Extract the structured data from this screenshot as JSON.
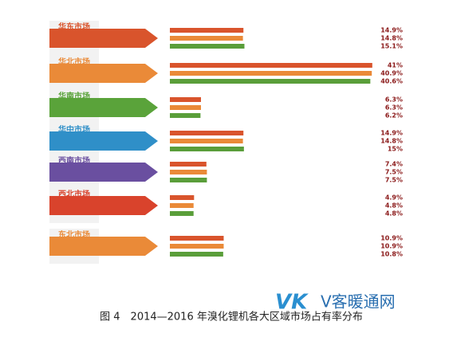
{
  "chart_data": {
    "type": "grouped-barh",
    "title": "图 4　2014—2016 年溴化锂机各大区域市场占有率分布",
    "logo": "VK",
    "logo_text": "V客暖通网",
    "categories": [
      "华东市场",
      "华北市场",
      "华南市场",
      "华中市场",
      "西南市场",
      "西北市场",
      "东北市场"
    ],
    "category_colors": [
      "#d9542c",
      "#ea8a38",
      "#5aa33a",
      "#2f8fc8",
      "#6a4fa0",
      "#d9432c",
      "#ea8a38"
    ],
    "xlim": [
      0,
      42
    ],
    "series": [
      {
        "color": "#d9542c",
        "values": [
          14.9,
          41,
          6.3,
          14.9,
          7.4,
          4.9,
          10.9
        ],
        "value_labels": [
          "14.9%",
          "41%",
          "6.3%",
          "14.9%",
          "7.4%",
          "4.9%",
          "10.9%"
        ]
      },
      {
        "color": "#ea8a38",
        "values": [
          14.8,
          40.9,
          6.3,
          14.8,
          7.5,
          4.8,
          10.9
        ],
        "value_labels": [
          "14.8%",
          "40.9%",
          "6.3%",
          "14.8%",
          "7.5%",
          "4.8%",
          "10.9%"
        ]
      },
      {
        "color": "#5a9e3a",
        "values": [
          15.1,
          40.6,
          6.2,
          15,
          7.5,
          4.8,
          10.8
        ],
        "value_labels": [
          "15.1%",
          "40.6%",
          "6.2%",
          "15%",
          "7.5%",
          "4.8%",
          "10.8%"
        ]
      }
    ]
  }
}
